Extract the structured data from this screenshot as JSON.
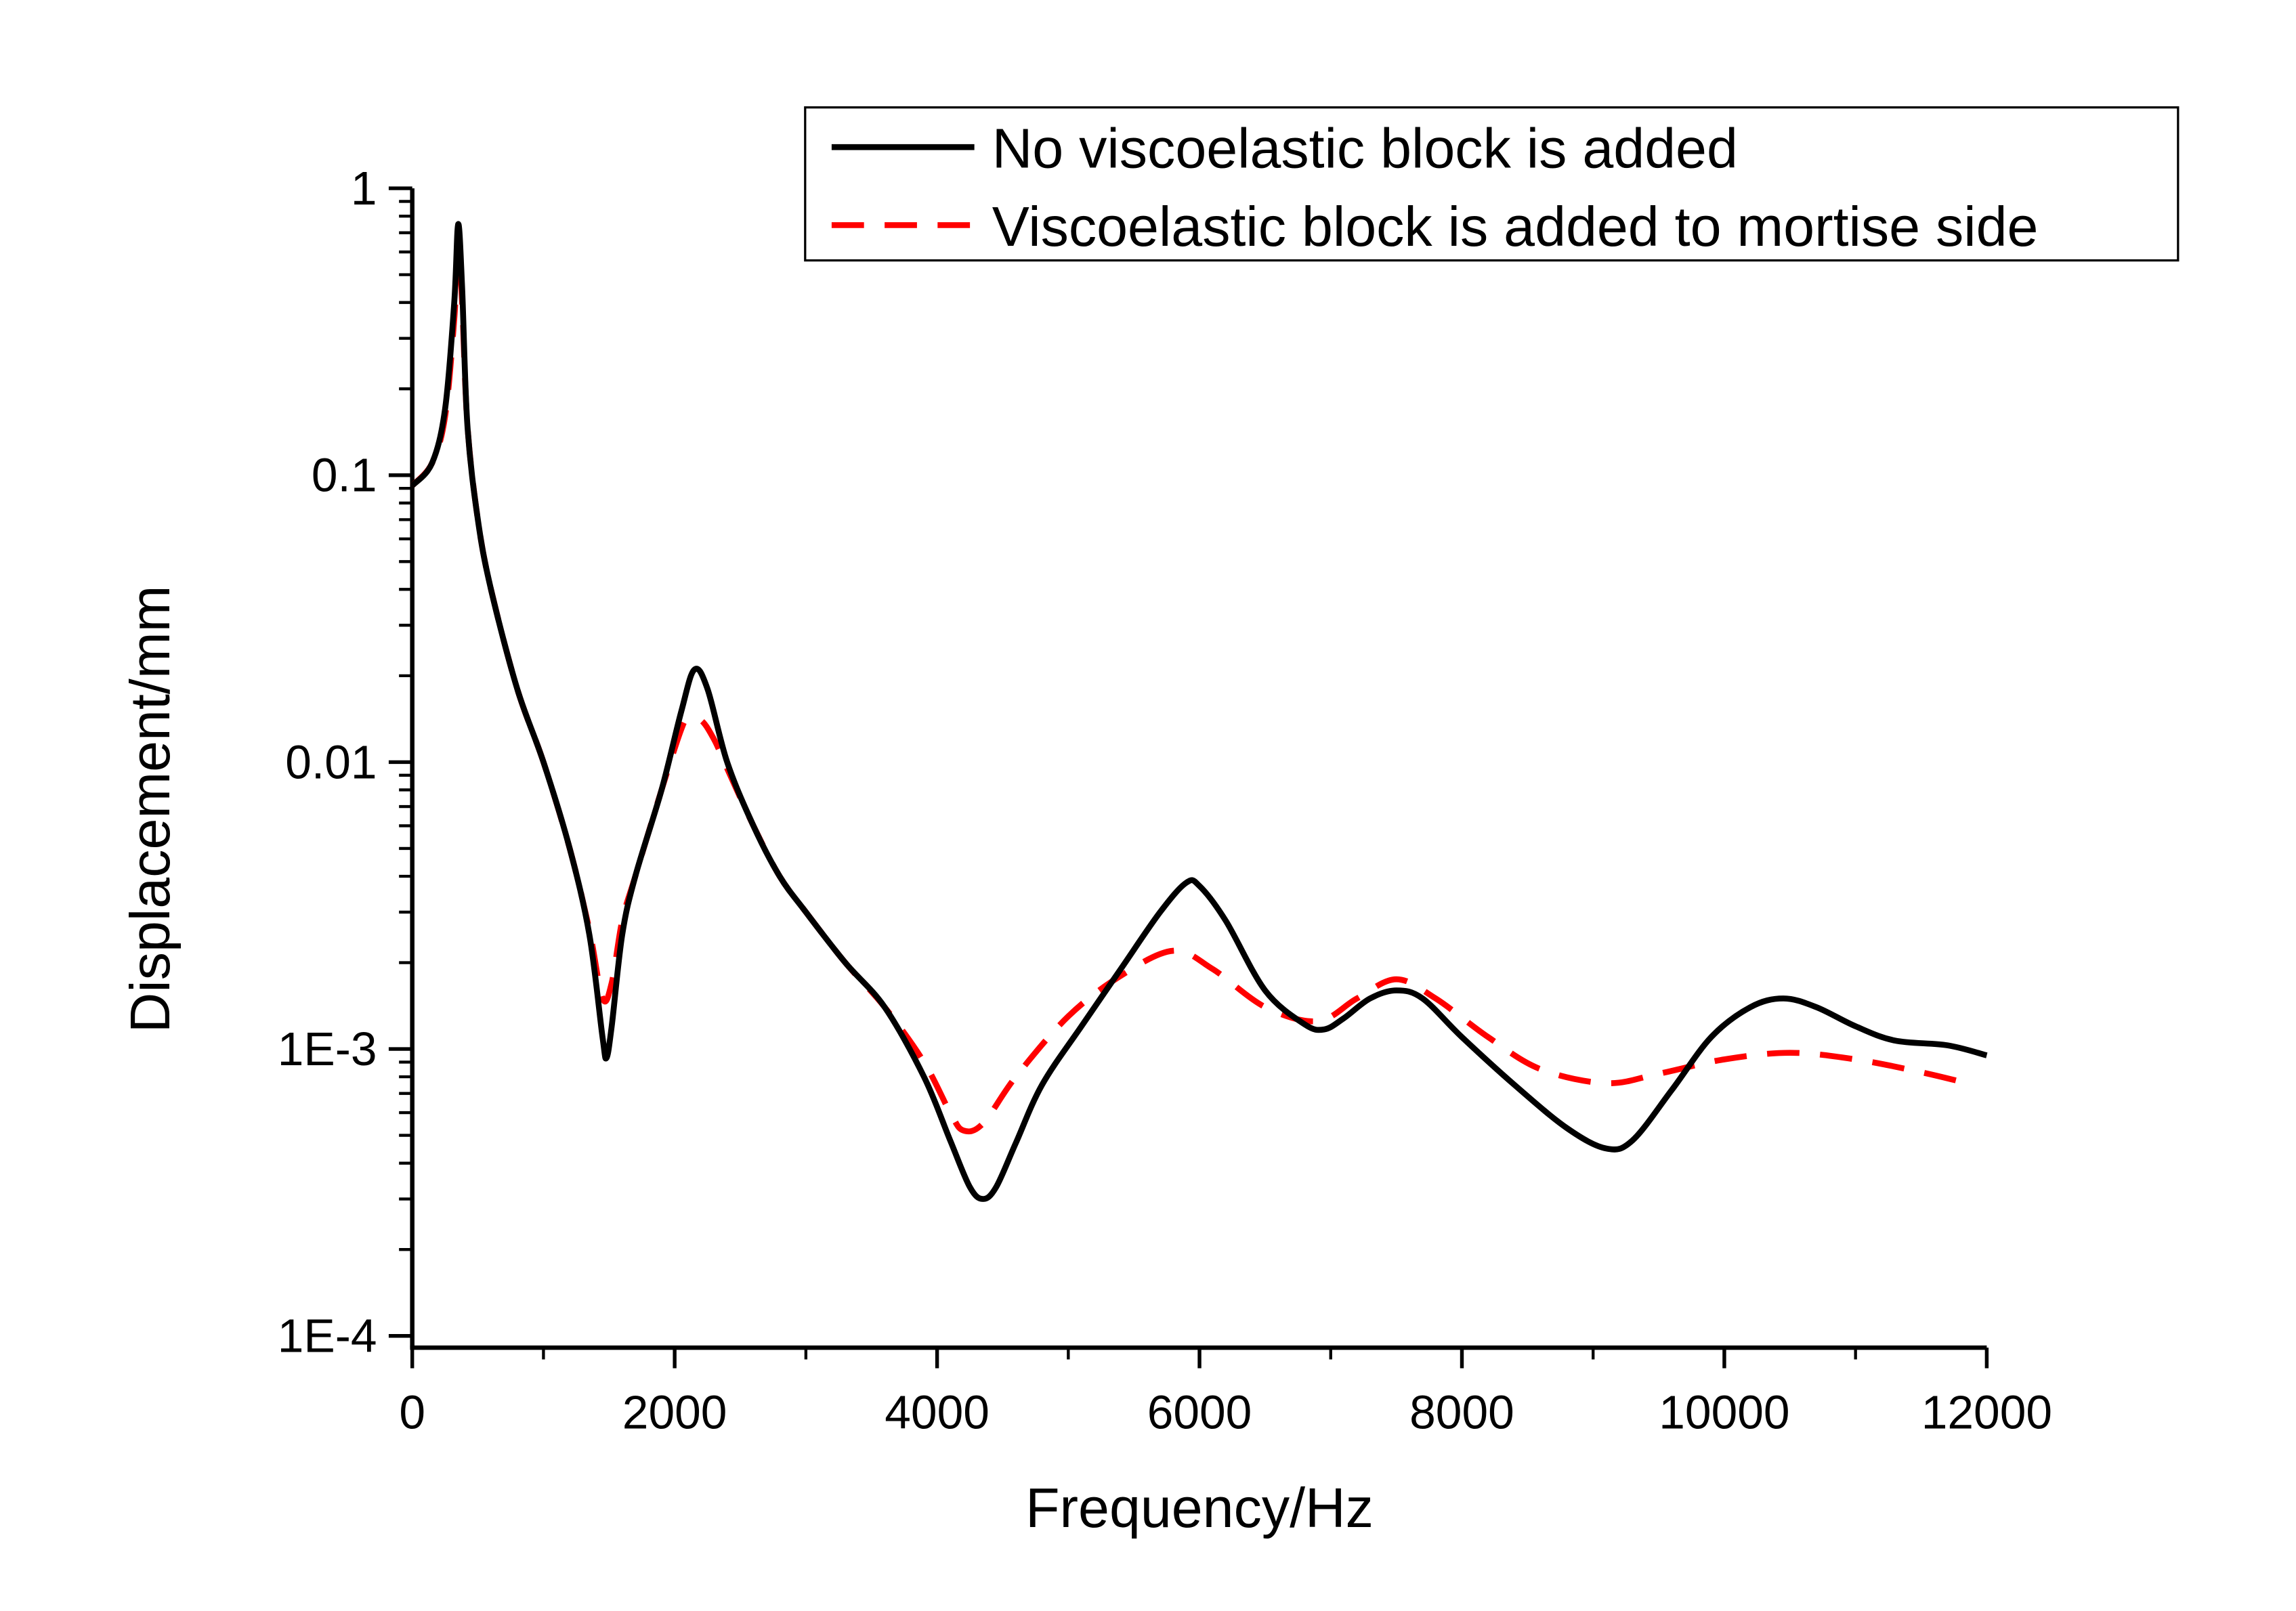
{
  "chart_data": {
    "type": "line",
    "title": "",
    "xlabel": "Frequency/Hz",
    "ylabel": "Displacement/mm",
    "xlim": [
      0,
      12000
    ],
    "ylim": [
      0.0001,
      1
    ],
    "yscale": "log",
    "grid": false,
    "legend_placement": "top-right",
    "x_ticks": [
      0,
      2000,
      4000,
      6000,
      8000,
      10000,
      12000
    ],
    "x_tick_labels": [
      "0",
      "2000",
      "4000",
      "6000",
      "8000",
      "10000",
      "12000"
    ],
    "y_ticks": [
      1,
      0.1,
      0.01,
      0.001,
      0.0001
    ],
    "y_tick_labels": [
      "1",
      "0.1",
      "0.01",
      "1E-3",
      "1E-4"
    ],
    "series": [
      {
        "name": "No viscoelastic block is added",
        "color": "#000000",
        "style": "solid",
        "x": [
          0,
          150,
          250,
          320,
          350,
          380,
          420,
          500,
          600,
          800,
          1000,
          1200,
          1350,
          1450,
          1480,
          1520,
          1600,
          1700,
          1900,
          2050,
          2150,
          2250,
          2400,
          2600,
          2800,
          3000,
          3300,
          3600,
          3900,
          4100,
          4250,
          4350,
          4450,
          4600,
          4800,
          5100,
          5400,
          5700,
          5900,
          6000,
          6200,
          6500,
          6800,
          6950,
          7100,
          7300,
          7500,
          7700,
          8000,
          8400,
          8800,
          9100,
          9300,
          9600,
          9900,
          10200,
          10450,
          10700,
          11000,
          11300,
          11700,
          12000
        ],
        "y": [
          0.092,
          0.11,
          0.17,
          0.4,
          0.75,
          0.45,
          0.15,
          0.07,
          0.04,
          0.018,
          0.01,
          0.005,
          0.0025,
          0.0011,
          0.00093,
          0.0012,
          0.0025,
          0.004,
          0.008,
          0.015,
          0.021,
          0.018,
          0.01,
          0.006,
          0.004,
          0.003,
          0.002,
          0.0014,
          0.0008,
          0.00048,
          0.00033,
          0.0003,
          0.00033,
          0.00047,
          0.00075,
          0.0012,
          0.0019,
          0.003,
          0.0038,
          0.0037,
          0.0028,
          0.0016,
          0.00122,
          0.00117,
          0.00128,
          0.0015,
          0.0016,
          0.0015,
          0.0011,
          0.00075,
          0.00053,
          0.00045,
          0.00048,
          0.00072,
          0.0011,
          0.0014,
          0.0015,
          0.0014,
          0.0012,
          0.00107,
          0.00103,
          0.00095
        ]
      },
      {
        "name": "Viscoelastic block is added to mortise side",
        "color": "#ff0000",
        "style": "dashed",
        "x": [
          0,
          150,
          250,
          320,
          350,
          380,
          420,
          500,
          600,
          800,
          1000,
          1200,
          1350,
          1450,
          1520,
          1600,
          1700,
          1900,
          2050,
          2100,
          2200,
          2300,
          2400,
          2600,
          2800,
          3000,
          3300,
          3600,
          3900,
          4100,
          4200,
          4350,
          4600,
          5000,
          5400,
          5800,
          6100,
          6500,
          6900,
          7200,
          7500,
          7800,
          8200,
          8600,
          9100,
          9500,
          10000,
          10500,
          11000,
          11500,
          11900
        ],
        "y": [
          0.092,
          0.11,
          0.16,
          0.35,
          0.6,
          0.4,
          0.15,
          0.07,
          0.04,
          0.018,
          0.01,
          0.005,
          0.0026,
          0.0015,
          0.0017,
          0.0028,
          0.004,
          0.008,
          0.013,
          0.014,
          0.014,
          0.012,
          0.0095,
          0.006,
          0.004,
          0.003,
          0.002,
          0.0014,
          0.0009,
          0.0006,
          0.00052,
          0.00055,
          0.0008,
          0.0013,
          0.0018,
          0.0022,
          0.0019,
          0.0014,
          0.00125,
          0.0015,
          0.00175,
          0.0015,
          0.0011,
          0.00085,
          0.00076,
          0.00082,
          0.00092,
          0.00097,
          0.00092,
          0.00083,
          0.00075
        ]
      }
    ]
  }
}
